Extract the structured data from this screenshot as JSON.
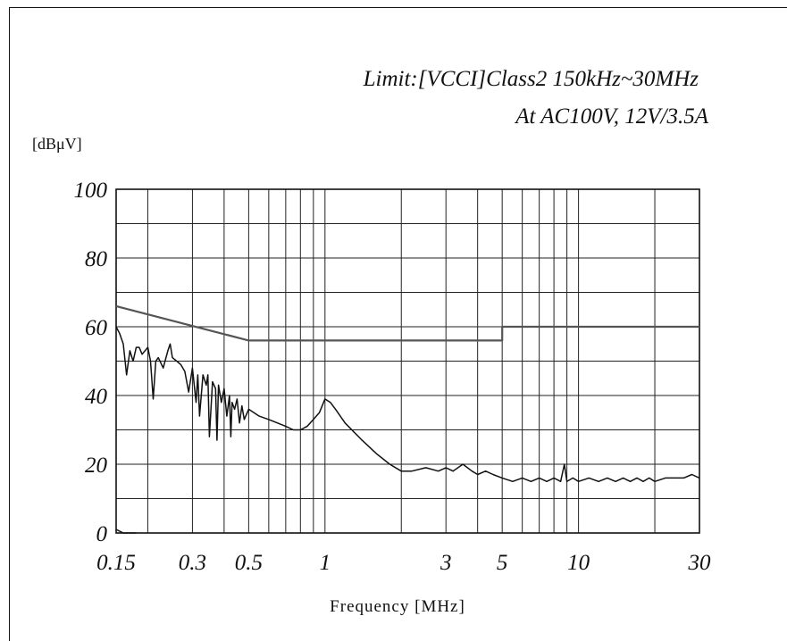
{
  "chart_data": {
    "type": "line",
    "title_line1": "Limit:[VCCI]Class2  150kHz~30MHz",
    "title_line2": "At AC100V, 12V/3.5A",
    "ylabel": "[dBμV]",
    "xlabel": "Frequency [MHz]",
    "x_scale": "log",
    "xlim": [
      0.15,
      30
    ],
    "ylim": [
      0,
      100
    ],
    "grid": true,
    "x_ticks": [
      {
        "value": 0.15,
        "label": "0.15"
      },
      {
        "value": 0.3,
        "label": "0.3"
      },
      {
        "value": 0.5,
        "label": "0.5"
      },
      {
        "value": 1,
        "label": "1"
      },
      {
        "value": 3,
        "label": "3"
      },
      {
        "value": 5,
        "label": "5"
      },
      {
        "value": 10,
        "label": "10"
      },
      {
        "value": 30,
        "label": "30"
      }
    ],
    "y_ticks": [
      {
        "value": 0,
        "label": "0"
      },
      {
        "value": 20,
        "label": "20"
      },
      {
        "value": 40,
        "label": "40"
      },
      {
        "value": 60,
        "label": "60"
      },
      {
        "value": 80,
        "label": "80"
      },
      {
        "value": 100,
        "label": "100"
      }
    ],
    "x_gridlines": [
      0.2,
      0.3,
      0.4,
      0.5,
      0.6,
      0.7,
      0.8,
      0.9,
      1,
      2,
      3,
      4,
      5,
      6,
      7,
      8,
      9,
      10,
      20
    ],
    "y_gridlines": [
      10,
      20,
      30,
      40,
      50,
      60,
      70,
      80,
      90
    ],
    "series": [
      {
        "role": "limit",
        "x": [
          0.15,
          0.5,
          5,
          5,
          30
        ],
        "y": [
          66,
          56,
          56,
          60,
          60
        ]
      },
      {
        "role": "measured",
        "x": [
          0.15,
          0.155,
          0.16,
          0.165,
          0.17,
          0.175,
          0.18,
          0.185,
          0.19,
          0.2,
          0.205,
          0.21,
          0.215,
          0.22,
          0.23,
          0.24,
          0.245,
          0.25,
          0.26,
          0.27,
          0.28,
          0.29,
          0.3,
          0.31,
          0.315,
          0.32,
          0.33,
          0.34,
          0.345,
          0.35,
          0.36,
          0.37,
          0.375,
          0.38,
          0.39,
          0.4,
          0.41,
          0.42,
          0.425,
          0.43,
          0.44,
          0.45,
          0.46,
          0.47,
          0.48,
          0.5,
          0.55,
          0.6,
          0.65,
          0.7,
          0.75,
          0.8,
          0.85,
          0.9,
          0.95,
          1.0,
          1.05,
          1.1,
          1.2,
          1.4,
          1.6,
          1.8,
          2.0,
          2.2,
          2.5,
          2.8,
          3.0,
          3.2,
          3.5,
          3.8,
          4.0,
          4.3,
          4.6,
          5.0,
          5.5,
          6.0,
          6.5,
          7.0,
          7.5,
          8.0,
          8.5,
          8.8,
          9.0,
          9.5,
          10,
          11,
          12,
          13,
          14,
          15,
          16,
          17,
          18,
          19,
          20,
          22,
          24,
          26,
          28,
          30
        ],
        "y": [
          60,
          58,
          55,
          46,
          53,
          50,
          54,
          54,
          52,
          54,
          50,
          39,
          50,
          51,
          48,
          53,
          55,
          51,
          50,
          49,
          47,
          41,
          48,
          38,
          46,
          34,
          46,
          43,
          46,
          28,
          44,
          42,
          27,
          43,
          38,
          42,
          34,
          40,
          28,
          38,
          36,
          39,
          32,
          37,
          33,
          36,
          34,
          33,
          32,
          31,
          30,
          30,
          31,
          33,
          35,
          39,
          38,
          36,
          32,
          27,
          23,
          20,
          18,
          18,
          19,
          18,
          19,
          18,
          20,
          18,
          17,
          18,
          17,
          16,
          15,
          16,
          15,
          16,
          15,
          16,
          15,
          20,
          15,
          16,
          15,
          16,
          15,
          16,
          15,
          16,
          15,
          16,
          15,
          16,
          15,
          16,
          16,
          16,
          17,
          16
        ]
      },
      {
        "role": "baseline",
        "x": [
          0.15,
          0.16,
          0.18
        ],
        "y": [
          1,
          0,
          0
        ]
      }
    ]
  }
}
